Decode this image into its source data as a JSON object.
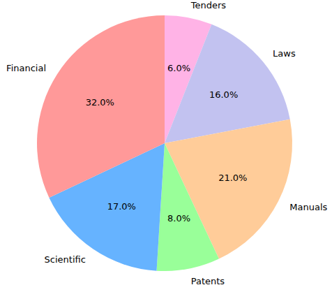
{
  "chart_data": {
    "type": "pie",
    "categories": [
      "Tenders",
      "Laws",
      "Manuals",
      "Patents",
      "Scientific",
      "Financial"
    ],
    "values": [
      6,
      16,
      21,
      8,
      17,
      32
    ],
    "value_labels": [
      "6.0%",
      "16.0%",
      "21.0%",
      "8.0%",
      "17.0%",
      "32.0%"
    ],
    "colors": [
      "#ffb3e6",
      "#c2c2f0",
      "#ffcc99",
      "#99ff99",
      "#66b3ff",
      "#ff9999"
    ],
    "data_labels": true
  }
}
